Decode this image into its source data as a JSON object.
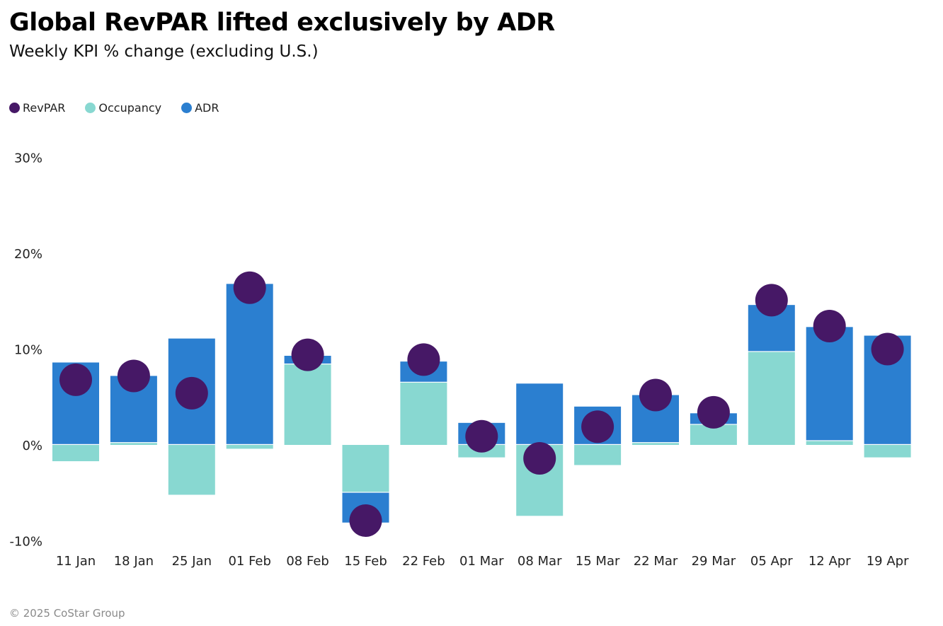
{
  "colors": {
    "revpar": "#461866",
    "occupancy": "#88d8d1",
    "adr": "#2b7fd0"
  },
  "chart_data": {
    "type": "bar",
    "subtype": "stacked-bar-with-dot",
    "title": "Global RevPAR lifted exclusively by ADR",
    "subtitle": "Weekly KPI % change (excluding U.S.)",
    "xlabel": "",
    "ylabel": "",
    "ylim": [
      -10,
      30
    ],
    "yticks": [
      -10,
      0,
      10,
      20,
      30
    ],
    "ytick_labels": [
      "-10%",
      "0%",
      "10%",
      "20%",
      "30%"
    ],
    "grid": false,
    "legend_position": "top-left",
    "legend": [
      "RevPAR",
      "Occupancy",
      "ADR"
    ],
    "categories": [
      "11 Jan",
      "18 Jan",
      "25 Jan",
      "01 Feb",
      "08 Feb",
      "15 Feb",
      "22 Feb",
      "01 Mar",
      "08 Mar",
      "15 Mar",
      "22 Mar",
      "29 Mar",
      "05 Apr",
      "12 Apr",
      "19 Apr"
    ],
    "series": [
      {
        "name": "Occupancy",
        "kind": "bar",
        "values": [
          -1.7,
          0.2,
          -5.2,
          -0.4,
          8.4,
          -4.9,
          6.5,
          -1.3,
          -7.4,
          -2.1,
          0.2,
          2.1,
          9.7,
          0.4,
          -1.3
        ]
      },
      {
        "name": "ADR",
        "kind": "bar",
        "values": [
          8.6,
          7.0,
          11.1,
          16.8,
          0.9,
          -3.2,
          2.2,
          2.3,
          6.4,
          4.0,
          5.0,
          1.2,
          4.9,
          11.9,
          11.4
        ]
      },
      {
        "name": "RevPAR",
        "kind": "dot",
        "values": [
          6.8,
          7.2,
          5.4,
          16.4,
          9.4,
          -7.9,
          8.9,
          0.9,
          -1.4,
          1.9,
          5.2,
          3.4,
          15.1,
          12.4,
          10.0
        ]
      }
    ]
  },
  "footer": "© 2025 CoStar Group"
}
